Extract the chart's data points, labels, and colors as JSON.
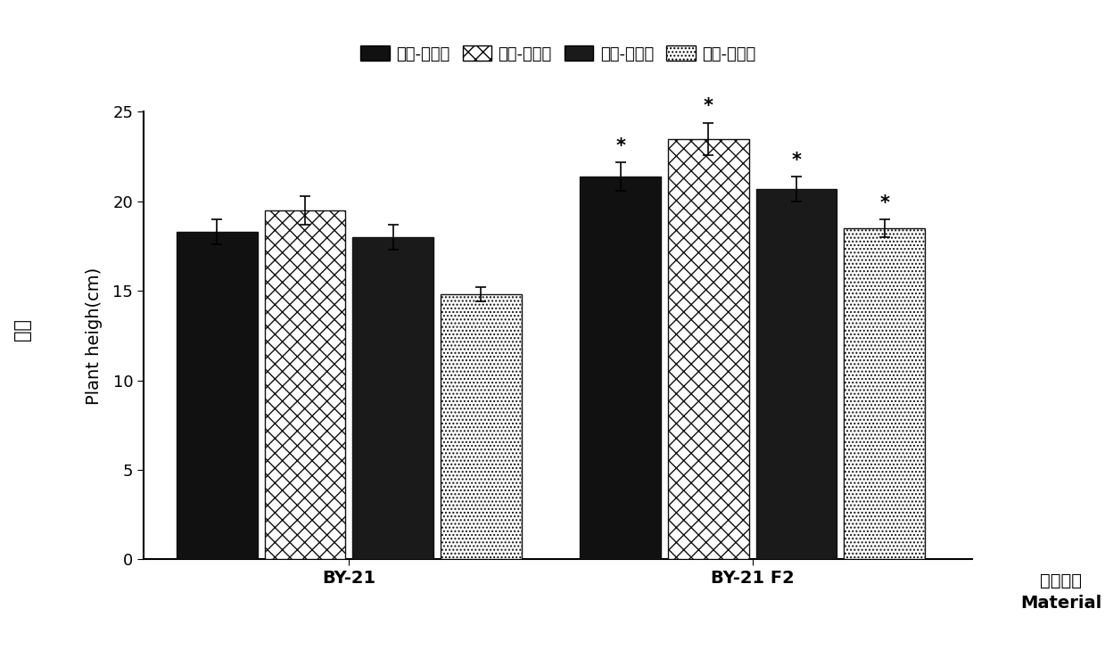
{
  "groups": [
    "BY-21",
    "BY-21 F2"
  ],
  "legend_labels": [
    "单种-荒地土",
    "单种-农田土",
    "混种-荒地土",
    "混种-农田土"
  ],
  "values": [
    [
      18.3,
      19.5,
      18.0,
      14.8
    ],
    [
      21.4,
      23.5,
      20.7,
      18.5
    ]
  ],
  "errors": [
    [
      0.7,
      0.8,
      0.7,
      0.4
    ],
    [
      0.8,
      0.9,
      0.7,
      0.5
    ]
  ],
  "significance": [
    [
      false,
      false,
      false,
      false
    ],
    [
      true,
      true,
      true,
      true
    ]
  ],
  "ylabel_chinese": "株高",
  "ylabel_english": "Plant heigh(cm)",
  "xlabel_chinese": "供试种群",
  "xlabel_english": "Material",
  "ylim": [
    0,
    25
  ],
  "yticks": [
    0,
    5,
    10,
    15,
    20,
    25
  ],
  "bar_width": 0.12,
  "background_color": "#ffffff",
  "group_centers": [
    0.3,
    0.85
  ],
  "xlim": [
    0.02,
    1.15
  ]
}
